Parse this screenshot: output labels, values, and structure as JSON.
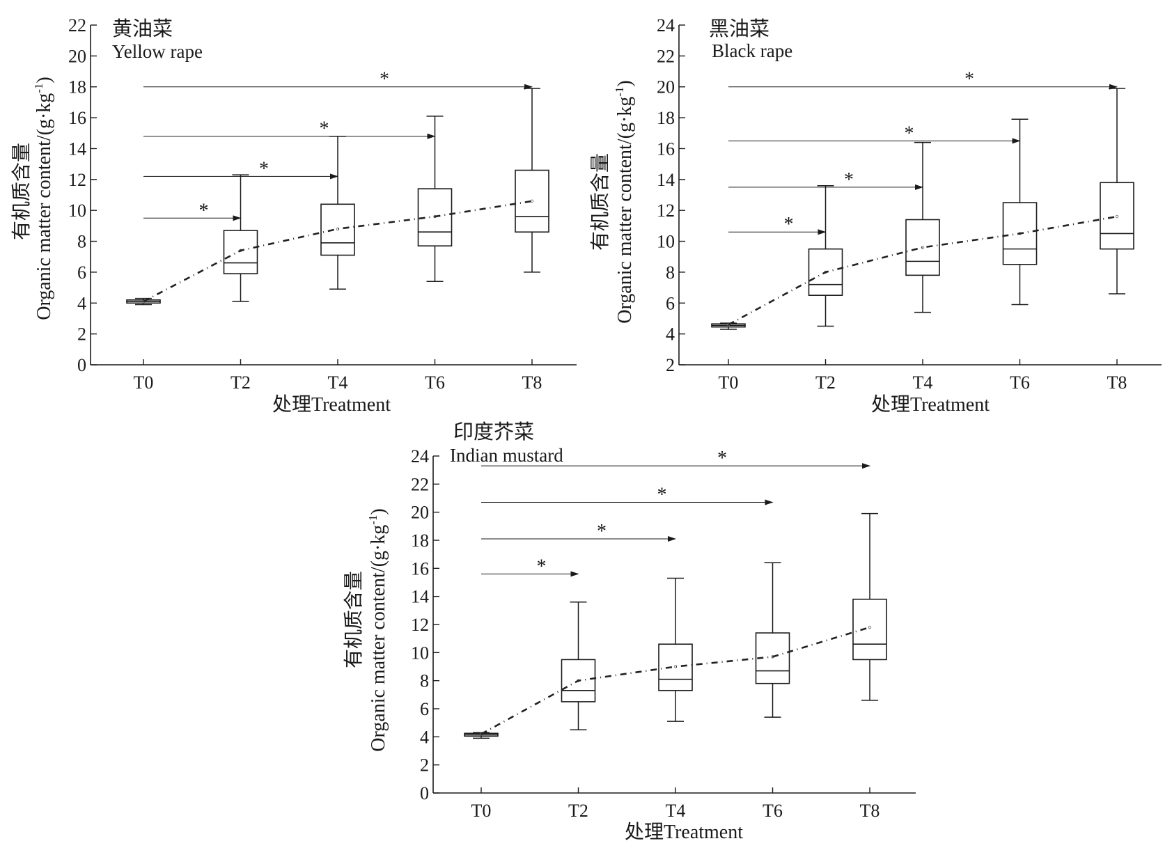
{
  "chart_data": [
    {
      "type": "box",
      "title": "黄油菜",
      "subtitle": "Yellow rape",
      "xlabel": "处理Treatment",
      "ylabel": "有机质含量",
      "ylabel_en": "Organic matter content/(g·kg",
      "ylabel_sup": "-1",
      "ylabel_close": ")",
      "ylim": [
        0,
        22
      ],
      "yticks": [
        "0",
        "2",
        "4",
        "6",
        "8",
        "10",
        "12",
        "14",
        "16",
        "18",
        "20",
        "22"
      ],
      "categories": [
        "T0",
        "T2",
        "T4",
        "T6",
        "T8"
      ],
      "boxes": [
        {
          "min": 3.9,
          "q1": 4.0,
          "median": 4.1,
          "q3": 4.2,
          "max": 4.3,
          "mean": 4.1
        },
        {
          "min": 4.1,
          "q1": 5.9,
          "median": 6.6,
          "q3": 8.7,
          "max": 12.3,
          "mean": 7.4
        },
        {
          "min": 4.9,
          "q1": 7.1,
          "median": 7.9,
          "q3": 10.4,
          "max": 14.8,
          "mean": 8.8
        },
        {
          "min": 5.4,
          "q1": 7.7,
          "median": 8.6,
          "q3": 11.4,
          "max": 16.1,
          "mean": 9.6
        },
        {
          "min": 6.0,
          "q1": 8.6,
          "median": 9.6,
          "q3": 12.6,
          "max": 17.9,
          "mean": 10.6
        }
      ],
      "comparisons": [
        {
          "from": "T0",
          "to": "T2",
          "y": 9.5,
          "label": "*"
        },
        {
          "from": "T0",
          "to": "T4",
          "y": 12.2,
          "label": "*"
        },
        {
          "from": "T0",
          "to": "T6",
          "y": 14.8,
          "label": "*"
        },
        {
          "from": "T0",
          "to": "T8",
          "y": 18.0,
          "label": "*"
        }
      ]
    },
    {
      "type": "box",
      "title": "黑油菜",
      "subtitle": "Black rape",
      "xlabel": "处理Treatment",
      "ylabel": "有机质含量",
      "ylabel_en": "Organic matter content/(g·kg",
      "ylabel_sup": "-1",
      "ylabel_close": ")",
      "ylim": [
        2,
        24
      ],
      "yticks": [
        "2",
        "4",
        "6",
        "8",
        "10",
        "12",
        "14",
        "16",
        "18",
        "20",
        "22",
        "24"
      ],
      "categories": [
        "T0",
        "T2",
        "T4",
        "T6",
        "T8"
      ],
      "boxes": [
        {
          "min": 4.3,
          "q1": 4.45,
          "median": 4.55,
          "q3": 4.65,
          "max": 4.7,
          "mean": 4.6
        },
        {
          "min": 4.5,
          "q1": 6.5,
          "median": 7.2,
          "q3": 9.5,
          "max": 13.6,
          "mean": 8.0
        },
        {
          "min": 5.4,
          "q1": 7.8,
          "median": 8.7,
          "q3": 11.4,
          "max": 16.4,
          "mean": 9.6
        },
        {
          "min": 5.9,
          "q1": 8.5,
          "median": 9.5,
          "q3": 12.5,
          "max": 17.9,
          "mean": 10.5
        },
        {
          "min": 6.6,
          "q1": 9.5,
          "median": 10.5,
          "q3": 13.8,
          "max": 19.9,
          "mean": 11.6
        }
      ],
      "comparisons": [
        {
          "from": "T0",
          "to": "T2",
          "y": 10.6,
          "label": "*"
        },
        {
          "from": "T0",
          "to": "T4",
          "y": 13.5,
          "label": "*"
        },
        {
          "from": "T0",
          "to": "T6",
          "y": 16.5,
          "label": "*"
        },
        {
          "from": "T0",
          "to": "T8",
          "y": 20.0,
          "label": "*"
        }
      ]
    },
    {
      "type": "box",
      "title": "印度芥菜",
      "subtitle": "Indian mustard",
      "xlabel": "处理Treatment",
      "ylabel": "有机质含量",
      "ylabel_en": "Organic matter content/(g·kg",
      "ylabel_sup": "-1",
      "ylabel_close": ")",
      "ylim": [
        0,
        24
      ],
      "yticks": [
        "0",
        "2",
        "4",
        "6",
        "8",
        "10",
        "12",
        "14",
        "16",
        "18",
        "20",
        "22",
        "24"
      ],
      "categories": [
        "T0",
        "T2",
        "T4",
        "T6",
        "T8"
      ],
      "boxes": [
        {
          "min": 3.9,
          "q1": 4.05,
          "median": 4.15,
          "q3": 4.25,
          "max": 4.3,
          "mean": 4.2
        },
        {
          "min": 4.5,
          "q1": 6.5,
          "median": 7.3,
          "q3": 9.5,
          "max": 13.6,
          "mean": 8.0
        },
        {
          "min": 5.1,
          "q1": 7.3,
          "median": 8.1,
          "q3": 10.6,
          "max": 15.3,
          "mean": 9.0
        },
        {
          "min": 5.4,
          "q1": 7.8,
          "median": 8.7,
          "q3": 11.4,
          "max": 16.4,
          "mean": 9.7
        },
        {
          "min": 6.6,
          "q1": 9.5,
          "median": 10.6,
          "q3": 13.8,
          "max": 19.9,
          "mean": 11.8
        }
      ],
      "comparisons": [
        {
          "from": "T0",
          "to": "T2",
          "y": 15.6,
          "label": "*"
        },
        {
          "from": "T0",
          "to": "T4",
          "y": 18.1,
          "label": "*"
        },
        {
          "from": "T0",
          "to": "T6",
          "y": 20.7,
          "label": "*"
        },
        {
          "from": "T0",
          "to": "T8",
          "y": 23.3,
          "label": "*"
        }
      ]
    }
  ],
  "colors": {
    "ink": "#1a1a1a",
    "dash": "#222222"
  }
}
